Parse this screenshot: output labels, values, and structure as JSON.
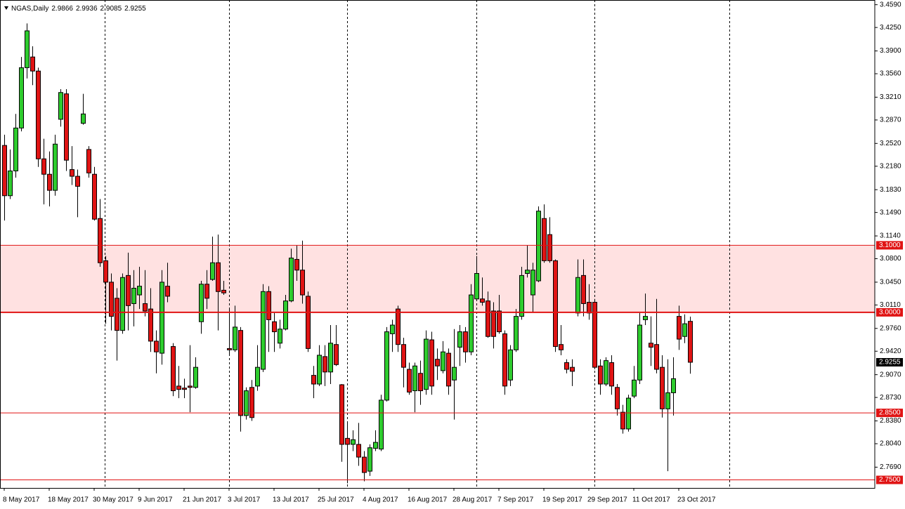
{
  "chart_data": {
    "type": "candlestick",
    "title": "NGAS,Daily",
    "up_color": "#2ecc2e",
    "down_color": "#e01414",
    "outline_color": "#000000",
    "level_color": "#e01414",
    "categories": [
      "8 May 2017",
      null,
      null,
      null,
      null,
      null,
      null,
      null,
      "18 May 2017",
      null,
      null,
      null,
      null,
      null,
      null,
      null,
      "30 May 2017",
      null,
      null,
      null,
      null,
      null,
      null,
      null,
      "9 Jun 2017",
      null,
      null,
      null,
      null,
      null,
      null,
      null,
      "21 Jun 2017",
      null,
      null,
      null,
      null,
      null,
      null,
      null,
      "3 Jul 2017",
      null,
      null,
      null,
      null,
      null,
      null,
      null,
      "13 Jul 2017",
      null,
      null,
      null,
      null,
      null,
      null,
      null,
      "25 Jul 2017",
      null,
      null,
      null,
      null,
      null,
      null,
      null,
      "4 Aug 2017",
      null,
      null,
      null,
      null,
      null,
      null,
      null,
      "16 Aug 2017",
      null,
      null,
      null,
      null,
      null,
      null,
      null,
      "28 Aug 2017",
      null,
      null,
      null,
      null,
      null,
      null,
      null,
      "7 Sep 2017",
      null,
      null,
      null,
      null,
      null,
      null,
      null,
      "19 Sep 2017",
      null,
      null,
      null,
      null,
      null,
      null,
      null,
      "29 Sep 2017",
      null,
      null,
      null,
      null,
      null,
      null,
      null,
      "11 Oct 2017",
      null,
      null,
      null,
      null,
      null,
      null,
      null,
      "23 Oct 2017",
      null,
      null
    ],
    "open": [
      3.249,
      3.174,
      3.211,
      3.275,
      3.365,
      3.381,
      3.36,
      3.229,
      3.206,
      3.182,
      3.288,
      3.326,
      3.213,
      3.203,
      3.282,
      3.243,
      3.206,
      3.14,
      3.077,
      3.045,
      3.021,
      2.973,
      3.055,
      3.013,
      3.026,
      3.013,
      3.005,
      2.957,
      2.939,
      3.039,
      2.949,
      2.89,
      2.887,
      2.89,
      2.888,
      2.986,
      3.042,
      3.049,
      3.074,
      3.033,
      2.946,
      2.944,
      2.973,
      2.846,
      2.888,
      2.89,
      2.915,
      3.031,
      2.986,
      2.954,
      2.975,
      3.017,
      3.079,
      3.063,
      3.024,
      2.906,
      2.893,
      2.934,
      2.911,
      2.952,
      2.892,
      2.812,
      2.803,
      2.803,
      2.784,
      2.763,
      2.797,
      2.796,
      2.869,
      2.968,
      3.005,
      2.952,
      2.915,
      2.883,
      2.909,
      2.885,
      2.959,
      2.93,
      2.913,
      2.939,
      2.899,
      2.948,
      2.971,
      2.941,
      3.02,
      3.02,
      3.017,
      3.002,
      3.002,
      2.968,
      2.899,
      2.944,
      2.994,
      3.058,
      3.026,
      3.047,
      3.14,
      3.116,
      3.077,
      2.952,
      2.925,
      2.918,
      2.999,
      3.055,
      3.015,
      3.015,
      2.92,
      2.893,
      2.925,
      2.888,
      2.851,
      2.826,
      2.875,
      2.899,
      2.989,
      2.954,
      2.952,
      2.918,
      2.856,
      2.88,
      2.994,
      2.964,
      2.9866
    ],
    "high": [
      3.265,
      3.243,
      3.296,
      3.381,
      3.431,
      3.397,
      3.365,
      3.259,
      3.24,
      3.265,
      3.333,
      3.333,
      3.248,
      3.213,
      3.326,
      3.248,
      3.217,
      3.169,
      3.084,
      3.058,
      3.036,
      3.058,
      3.089,
      3.063,
      3.068,
      3.063,
      3.036,
      2.973,
      3.063,
      3.074,
      2.954,
      2.92,
      2.901,
      2.951,
      2.933,
      3.047,
      3.063,
      3.113,
      3.116,
      3.047,
      3.005,
      3.01,
      2.978,
      2.888,
      2.899,
      2.951,
      3.042,
      3.039,
      2.999,
      2.989,
      3.026,
      3.095,
      3.1,
      3.107,
      3.031,
      2.92,
      2.951,
      2.951,
      2.981,
      2.981,
      2.893,
      2.835,
      2.824,
      2.835,
      2.793,
      2.803,
      2.824,
      2.877,
      2.978,
      2.989,
      3.01,
      2.962,
      2.925,
      2.925,
      2.928,
      2.973,
      2.971,
      2.946,
      2.957,
      2.946,
      2.975,
      2.981,
      2.978,
      3.042,
      3.084,
      3.052,
      3.031,
      3.015,
      3.026,
      2.973,
      2.951,
      3.005,
      3.068,
      3.1,
      3.074,
      3.158,
      3.161,
      3.142,
      3.079,
      2.981,
      2.93,
      2.93,
      3.079,
      3.079,
      3.042,
      3.02,
      2.93,
      2.933,
      2.936,
      2.893,
      2.862,
      2.877,
      2.92,
      2.999,
      3.028,
      2.994,
      3.02,
      2.936,
      2.93,
      2.933,
      3.01,
      2.997,
      2.9936
    ],
    "low": [
      3.137,
      3.169,
      3.201,
      3.27,
      3.349,
      3.339,
      3.217,
      3.161,
      3.158,
      3.174,
      3.277,
      3.211,
      3.19,
      3.142,
      3.28,
      3.201,
      3.137,
      3.068,
      2.983,
      2.973,
      2.928,
      2.968,
      2.973,
      2.979,
      3.005,
      2.994,
      2.941,
      2.909,
      2.922,
      3.015,
      2.875,
      2.872,
      2.872,
      2.851,
      2.886,
      2.968,
      3.005,
      3.047,
      2.973,
      3.026,
      2.936,
      2.941,
      2.822,
      2.84,
      2.838,
      2.883,
      2.911,
      2.941,
      2.941,
      2.946,
      2.973,
      3.015,
      3.047,
      3.013,
      2.941,
      2.872,
      2.89,
      2.89,
      2.893,
      2.92,
      2.777,
      2.745,
      2.793,
      2.771,
      2.748,
      2.756,
      2.793,
      2.793,
      2.867,
      2.941,
      2.941,
      2.888,
      2.877,
      2.851,
      2.862,
      2.877,
      2.877,
      2.899,
      2.909,
      2.877,
      2.84,
      2.92,
      2.925,
      2.936,
      3.017,
      3.01,
      2.962,
      2.946,
      2.968,
      2.877,
      2.89,
      2.941,
      2.989,
      3.052,
      3.0,
      3.045,
      3.074,
      3.074,
      2.941,
      2.936,
      2.909,
      2.89,
      2.994,
      2.994,
      2.989,
      2.915,
      2.877,
      2.89,
      2.877,
      2.846,
      2.819,
      2.822,
      2.872,
      2.893,
      2.981,
      2.92,
      2.909,
      2.843,
      2.763,
      2.846,
      2.944,
      2.954,
      2.9085
    ],
    "close": [
      3.174,
      3.211,
      3.275,
      3.365,
      3.42,
      3.36,
      3.229,
      3.206,
      3.182,
      3.251,
      3.328,
      3.227,
      3.203,
      3.188,
      3.296,
      3.208,
      3.139,
      3.074,
      3.045,
      2.994,
      2.973,
      3.052,
      3.01,
      3.036,
      3.039,
      3.002,
      2.957,
      2.941,
      3.045,
      3.024,
      2.883,
      2.885,
      2.885,
      2.888,
      2.918,
      3.042,
      3.021,
      3.074,
      3.031,
      3.029,
      2.944,
      2.978,
      2.846,
      2.883,
      2.843,
      2.918,
      3.031,
      2.989,
      2.971,
      2.975,
      3.017,
      3.081,
      3.063,
      3.026,
      2.946,
      2.893,
      2.936,
      2.911,
      2.954,
      2.922,
      2.803,
      2.803,
      2.81,
      2.784,
      2.761,
      2.798,
      2.806,
      2.869,
      2.971,
      2.981,
      2.952,
      2.918,
      2.881,
      2.92,
      2.883,
      2.96,
      2.89,
      2.92,
      2.941,
      2.89,
      2.918,
      2.971,
      2.941,
      3.026,
      3.058,
      3.015,
      2.964,
      2.964,
      2.971,
      2.89,
      2.944,
      2.994,
      3.055,
      3.063,
      3.063,
      3.151,
      3.077,
      3.077,
      2.949,
      2.944,
      2.915,
      2.912,
      3.052,
      3.013,
      2.999,
      2.918,
      2.893,
      2.928,
      2.89,
      2.856,
      2.826,
      2.872,
      2.899,
      2.981,
      2.994,
      2.948,
      2.915,
      2.856,
      2.88,
      2.901,
      2.96,
      2.983,
      2.9255
    ],
    "ylim": [
      2.738,
      3.466
    ],
    "yticks": [
      {
        "value": 3.459,
        "label": "3.4590"
      },
      {
        "value": 3.425,
        "label": "3.4250"
      },
      {
        "value": 3.39,
        "label": "3.3900"
      },
      {
        "value": 3.356,
        "label": "3.3560"
      },
      {
        "value": 3.321,
        "label": "3.3210"
      },
      {
        "value": 3.287,
        "label": "3.2870"
      },
      {
        "value": 3.252,
        "label": "3.2520"
      },
      {
        "value": 3.218,
        "label": "3.2180"
      },
      {
        "value": 3.183,
        "label": "3.1830"
      },
      {
        "value": 3.149,
        "label": "3.1490"
      },
      {
        "value": 3.114,
        "label": "3.1140"
      },
      {
        "value": 3.08,
        "label": "3.0800"
      },
      {
        "value": 3.045,
        "label": "3.0450"
      },
      {
        "value": 3.011,
        "label": "3.0110"
      },
      {
        "value": 2.976,
        "label": "2.9760"
      },
      {
        "value": 2.942,
        "label": "2.9420"
      },
      {
        "value": 2.907,
        "label": "2.9070"
      },
      {
        "value": 2.873,
        "label": "2.8730"
      },
      {
        "value": 2.838,
        "label": "2.8380"
      },
      {
        "value": 2.804,
        "label": "2.8040"
      },
      {
        "value": 2.769,
        "label": "2.7690"
      }
    ],
    "levels": [
      {
        "value": 3.1,
        "label": "3.1000"
      },
      {
        "value": 3.0,
        "label": "3.0000"
      },
      {
        "value": 2.85,
        "label": "2.8500"
      },
      {
        "value": 2.75,
        "label": "2.7500"
      }
    ],
    "zone": {
      "from": 3.0,
      "to": 3.1,
      "color": "#ffe1e1"
    }
  }
}
